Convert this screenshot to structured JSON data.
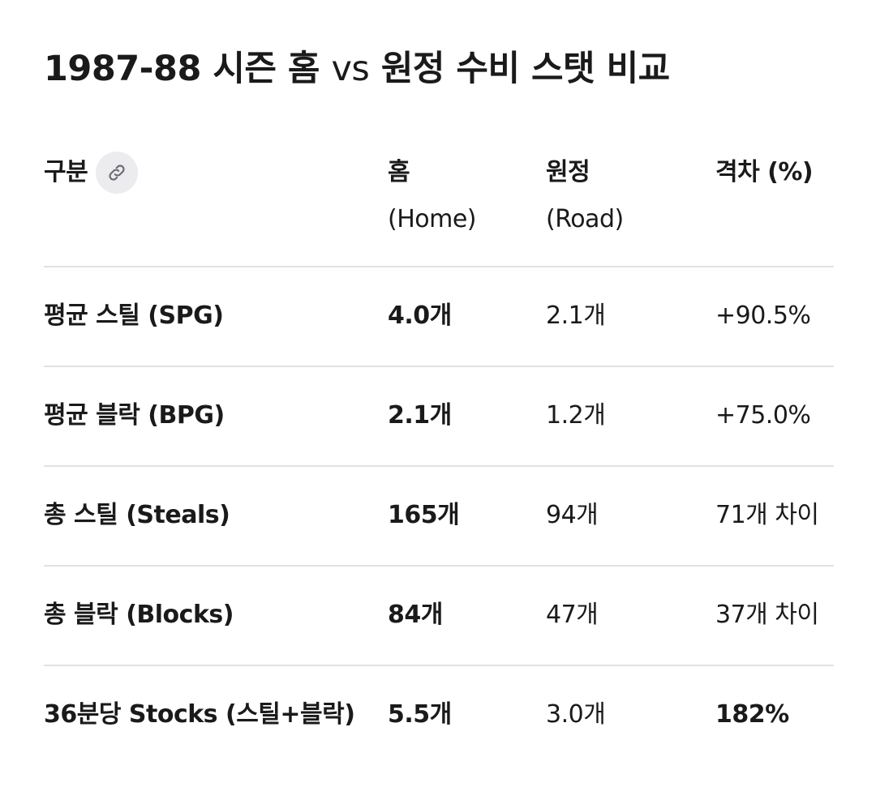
{
  "title": {
    "prefix": "1987-88 시즌 홈",
    "vs": "vs",
    "suffix": "원정 수비 스탯 비교"
  },
  "table": {
    "headers": {
      "label": "구분",
      "home_line1": "홈",
      "home_line2": "(Home)",
      "road_line1": "원정",
      "road_line2": "(Road)",
      "diff": "격차 (%)"
    },
    "link_icon": "link-icon",
    "rows": [
      {
        "label": "평균 스틸 (SPG)",
        "home": "4.0개",
        "road": "2.1개",
        "diff": "+90.5%"
      },
      {
        "label": "평균 블락 (BPG)",
        "home": "2.1개",
        "road": "1.2개",
        "diff": "+75.0%"
      },
      {
        "label": "총 스틸 (Steals)",
        "home": "165개",
        "road": "94개",
        "diff": "71개 차이"
      },
      {
        "label": "총 블락 (Blocks)",
        "home": "84개",
        "road": "47개",
        "diff": "37개 차이"
      },
      {
        "label": "36분당 Stocks (스틸+블락)",
        "home": "5.5개",
        "road": "3.0개",
        "diff": "182%"
      }
    ]
  },
  "colors": {
    "text": "#1a1a1a",
    "divider": "#e2e2e2",
    "chip_bg": "#ececef"
  }
}
